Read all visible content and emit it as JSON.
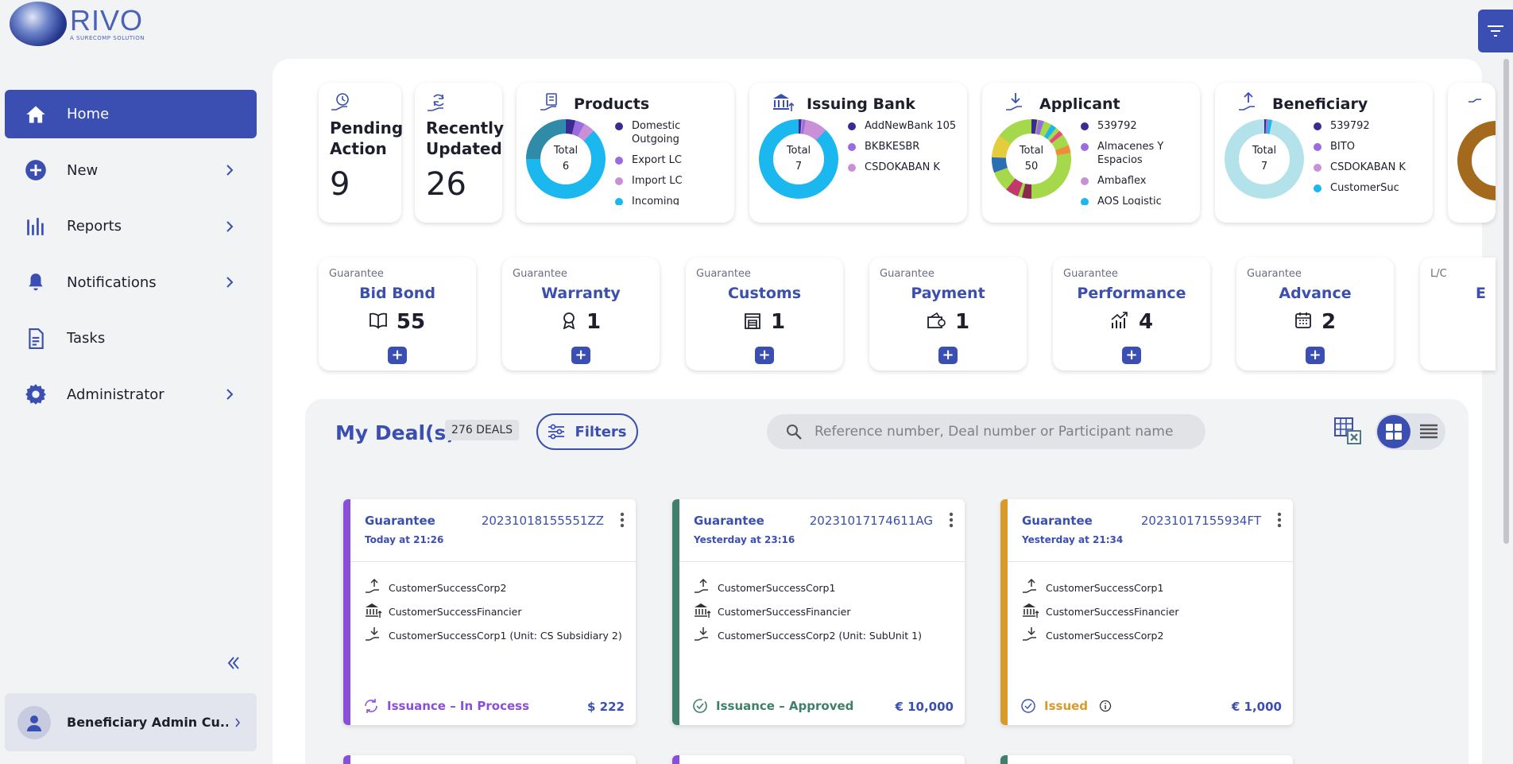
{
  "brand": {
    "name": "RIVO",
    "tagline": "A SURECOMP SOLUTION"
  },
  "sidebar": {
    "items": [
      {
        "label": "Home",
        "icon": "home-icon",
        "active": true
      },
      {
        "label": "New",
        "icon": "plus-circle-icon",
        "chevron": true
      },
      {
        "label": "Reports",
        "icon": "reports-icon",
        "chevron": true
      },
      {
        "label": "Notifications",
        "icon": "bell-icon",
        "chevron": true
      },
      {
        "label": "Tasks",
        "icon": "document-icon"
      },
      {
        "label": "Administrator",
        "icon": "gear-icon",
        "chevron": true
      }
    ],
    "user": "Beneficiary Admin Cu..."
  },
  "stats": {
    "pending": {
      "title": "Pending Action",
      "value": "9"
    },
    "recent": {
      "title": "Recently Updated",
      "value": "26"
    }
  },
  "pies": {
    "products": {
      "title": "Products",
      "total_label": "Total",
      "total": "6",
      "legend": [
        "Domestic Outgoing",
        "Export LC",
        "Import LC",
        "Incoming"
      ],
      "colors": [
        "#3b2a8f",
        "#9b6be0",
        "#c990d8",
        "#1bb7ef"
      ],
      "slices": [
        0.8,
        0.9,
        0.95,
        1.0
      ]
    },
    "issuing_bank": {
      "title": "Issuing Bank",
      "total_label": "Total",
      "total": "7",
      "legend": [
        "AddNewBank 105",
        "BKBKESBR",
        "CSDOKABAN K"
      ],
      "colors": [
        "#3b2a8f",
        "#9b6be0",
        "#c990d8",
        "#1bb7ef"
      ]
    },
    "applicant": {
      "title": "Applicant",
      "total_label": "Total",
      "total": "50",
      "legend": [
        "539792",
        "Almacenes Y Espacios",
        "Ambaflex",
        "AOS Logistic"
      ],
      "colors": [
        "#3b2a8f",
        "#9b6be0",
        "#c990d8",
        "#1bb7ef"
      ]
    },
    "beneficiary": {
      "title": "Beneficiary",
      "total_label": "Total",
      "total": "7",
      "legend": [
        "539792",
        "BITO",
        "CSDOKABAN K",
        "CustomerSuc"
      ],
      "colors": [
        "#3b2a8f",
        "#9b6be0",
        "#c990d8",
        "#1bb7ef"
      ]
    }
  },
  "guarantees": [
    {
      "category": "Guarantee",
      "title": "Bid Bond",
      "count": "55",
      "icon": "book-icon"
    },
    {
      "category": "Guarantee",
      "title": "Warranty",
      "count": "1",
      "icon": "ribbon-icon"
    },
    {
      "category": "Guarantee",
      "title": "Customs",
      "count": "1",
      "icon": "building-icon"
    },
    {
      "category": "Guarantee",
      "title": "Payment",
      "count": "1",
      "icon": "wallet-icon"
    },
    {
      "category": "Guarantee",
      "title": "Performance",
      "count": "4",
      "icon": "chart-up-icon"
    },
    {
      "category": "Guarantee",
      "title": "Advance",
      "count": "2",
      "icon": "calendar-icon"
    },
    {
      "category": "L/C",
      "title": "E",
      "count": "",
      "icon": "lc-icon"
    }
  ],
  "deals": {
    "title": "My Deal(s)",
    "count": "276 DEALS",
    "filters_label": "Filters",
    "search_placeholder": "Reference number, Deal number or Participant name",
    "cards": [
      {
        "type": "Guarantee",
        "time": "Today at 21:26",
        "ref": "20231018155551ZZ",
        "beneficiary": "CustomerSuccessCorp2",
        "bank": "CustomerSuccessFinancier",
        "applicant": "CustomerSuccessCorp1 (Unit: CS Subsidiary 2)",
        "status": "Issuance – In Process",
        "amount": "$ 222",
        "stripe": "#8a4fd8",
        "status_color": "#8a4fd8"
      },
      {
        "type": "Guarantee",
        "time": "Yesterday at 23:16",
        "ref": "20231017174611AG",
        "beneficiary": "CustomerSuccessCorp1",
        "bank": "CustomerSuccessFinancier",
        "applicant": "CustomerSuccessCorp2 (Unit: SubUnit 1)",
        "status": "Issuance – Approved",
        "amount": "€ 10,000",
        "stripe": "#3f7f6c",
        "status_color": "#3f7f6c"
      },
      {
        "type": "Guarantee",
        "time": "Yesterday at 21:34",
        "ref": "20231017155934FT",
        "beneficiary": "CustomerSuccessCorp1",
        "bank": "CustomerSuccessFinancier",
        "applicant": "CustomerSuccessCorp2",
        "status": "Issued",
        "amount": "€ 1,000",
        "stripe": "#d69b2a",
        "status_color": "#d69b2a"
      }
    ]
  },
  "colors": {
    "primary": "#3a4fb1",
    "bg": "#f2f3f5"
  }
}
